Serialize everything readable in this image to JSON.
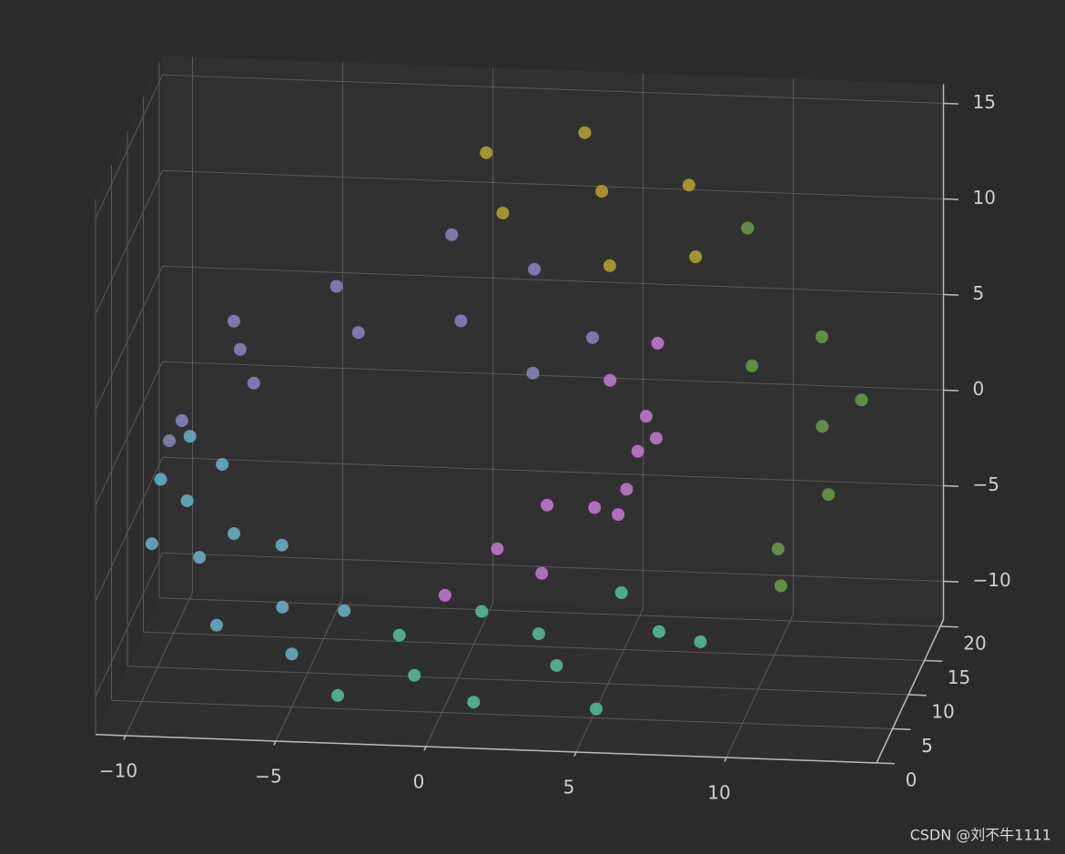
{
  "chart_data": {
    "type": "scatter3d",
    "xlim": [
      -11,
      15
    ],
    "ylim": [
      0,
      21
    ],
    "zlim": [
      -12,
      16
    ],
    "xticks": [
      {
        "value": -10,
        "label": "−10"
      },
      {
        "value": -5,
        "label": "−5"
      },
      0,
      5,
      10
    ],
    "yticks": [
      0,
      5,
      10,
      15,
      20
    ],
    "zticks": [
      {
        "value": -10,
        "label": "−10"
      },
      {
        "value": -5,
        "label": "−5"
      },
      0,
      5,
      10,
      15
    ],
    "grid": true,
    "series": [
      {
        "color": "#c77ad6",
        "x": [
          0.42,
          1.42,
          2.44,
          3.43,
          4.34,
          5.14,
          5.76,
          6.18,
          6.36,
          6.27,
          5.91,
          5.28
        ],
        "y": [
          2,
          9,
          15,
          4,
          12,
          18,
          6,
          14,
          3,
          10,
          17,
          8
        ],
        "z": [
          -4.78,
          -4.79,
          -4.59,
          -4.17,
          -3.54,
          -2.69,
          -1.68,
          -0.52,
          0.75,
          2.06,
          3.36,
          4.6
        ]
      },
      {
        "color": "#8a86c0",
        "x": [
          4.38,
          3.24,
          1.91,
          0.42,
          -1.16,
          -2.78,
          -4.36,
          -5.84,
          -7.14,
          -8.2,
          -8.97,
          -9.4
        ],
        "y": [
          11,
          3,
          16,
          7,
          19,
          5,
          13,
          1,
          9,
          17,
          4,
          12
        ],
        "z": [
          5.71,
          6.65,
          7.36,
          7.79,
          7.92,
          7.71,
          7.18,
          6.32,
          5.15,
          3.71,
          2.05,
          0.23
        ]
      },
      {
        "color": "#6bb3c7",
        "x": [
          -9.47,
          -9.45,
          -9.34,
          -9.12,
          -8.8,
          -8.39,
          -7.88,
          -7.29,
          -6.6,
          -5.84,
          -5.0,
          -4.1
        ],
        "y": [
          6,
          15,
          2,
          11,
          19,
          8,
          14,
          3,
          17,
          10,
          5,
          13
        ],
        "z": [
          -0.71,
          -1.67,
          -2.64,
          -3.59,
          -4.53,
          -5.44,
          -6.31,
          -7.14,
          -7.91,
          -8.61,
          -9.23,
          -9.77
        ]
      },
      {
        "color": "#56bfa0",
        "x": [
          -3.15,
          -2.16,
          -1.13,
          0.05,
          1.16,
          2.27,
          3.39,
          4.49,
          5.56,
          6.59,
          8.5
        ],
        "y": [
          2,
          12,
          7,
          17,
          4,
          14,
          9,
          19,
          1,
          11,
          6
        ],
        "z": [
          -10.22,
          -10.58,
          -10.84,
          -11.0,
          -11.04,
          -10.97,
          -10.78,
          -10.48,
          -10.07,
          -9.54,
          -8.18
        ]
      },
      {
        "color": "#6a9f4a",
        "x": [
          10.13,
          11.39,
          12.23,
          12.59,
          12.45,
          11.8,
          10.64,
          9.01
        ],
        "y": [
          15,
          4,
          11,
          18,
          7,
          13,
          2,
          16
        ],
        "z": [
          -6.44,
          -4.37,
          -2.05,
          0.42,
          2.96,
          5.46,
          7.81,
          9.92
        ]
      },
      {
        "color": "#b5a630",
        "x": [
          8.02,
          6.95,
          5.8,
          4.58,
          3.27,
          1.92,
          0.52
        ],
        "y": [
          9,
          17,
          3,
          12,
          19,
          6,
          14
        ],
        "z": [
          10.86,
          11.69,
          12.41,
          13.02,
          13.51,
          13.87,
          14.09
        ]
      }
    ]
  },
  "watermark": "CSDN @刘不牛1111"
}
